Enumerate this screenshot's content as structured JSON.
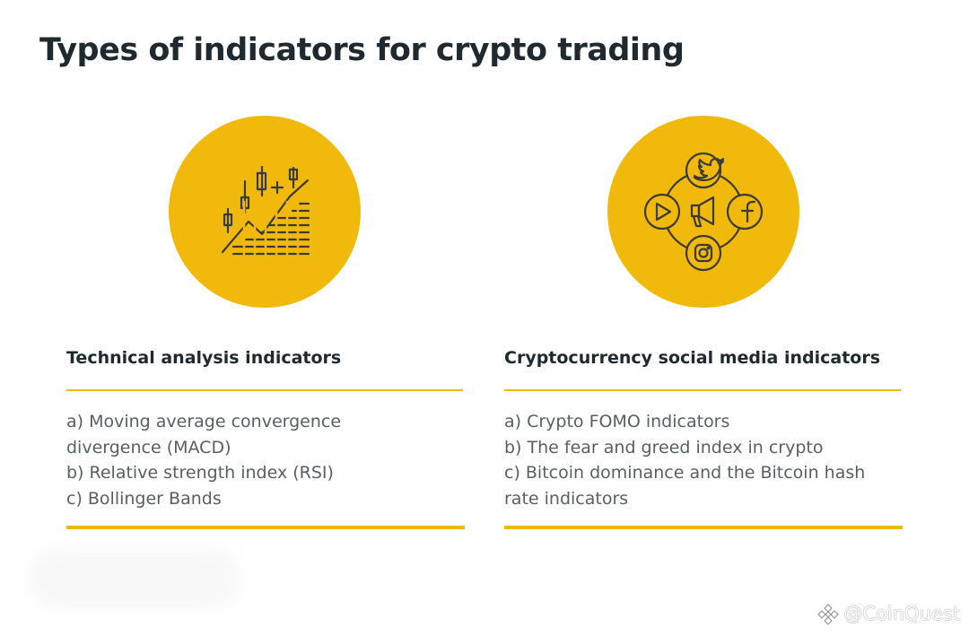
{
  "title": "Types of indicators for crypto trading",
  "colors": {
    "accent": "#f2b90d",
    "heading": "#1e2a2f",
    "body_text": "#585f63",
    "icon_stroke": "#3a3a3a"
  },
  "columns": [
    {
      "icon": "candlestick-chart-icon",
      "heading": "Technical analysis indicators",
      "items": [
        "a) Moving average convergence",
        "divergence (MACD)",
        "b) Relative strength index (RSI)",
        "c) Bollinger Bands"
      ]
    },
    {
      "icon": "social-media-megaphone-icon",
      "heading": "Cryptocurrency social media indicators",
      "items": [
        "a) Crypto FOMO indicators",
        "b) The fear and greed index in crypto",
        "c) Bitcoin dominance and the Bitcoin hash",
        "rate indicators"
      ]
    }
  ],
  "watermark": {
    "text": "@CoinQuest",
    "icon": "diamond-logo-icon"
  }
}
